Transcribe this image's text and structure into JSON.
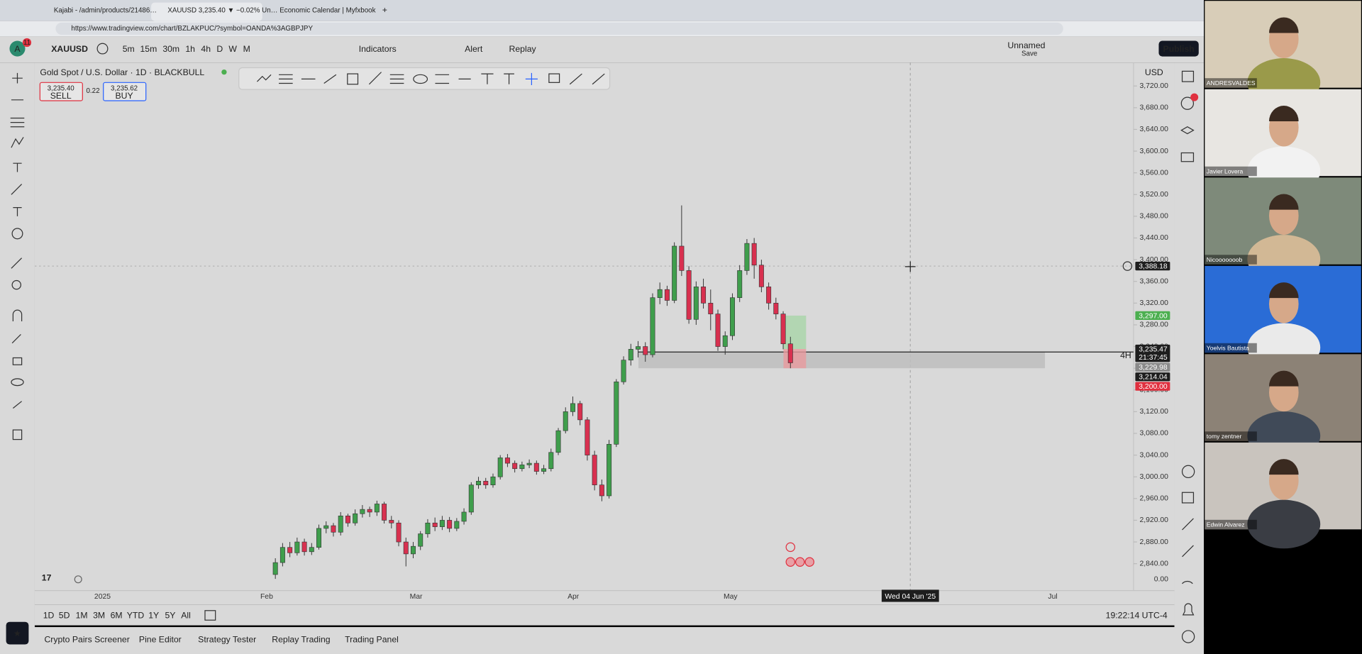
{
  "browser": {
    "tabs": [
      "Kajabi - /admin/products/21486…",
      "XAUUSD 3,235.40 ▼ −0.02% Un…",
      "Economic Calendar | Myfxbook"
    ],
    "url": "https://www.tradingview.com/chart/BZLAKPUC/?symbol=OANDA%3AGBPJPY"
  },
  "toolbar": {
    "avatar": "A",
    "badge": "11",
    "symbol": "XAUUSD",
    "intervals": [
      "5m",
      "15m",
      "30m",
      "1h",
      "4h",
      "D",
      "W",
      "M"
    ],
    "indicators": "Indicators",
    "alert": "Alert",
    "replay": "Replay",
    "layout_name": "Unnamed",
    "save": "Save",
    "publish": "Publish"
  },
  "order": {
    "sell_price": "3,235.40",
    "sell": "SELL",
    "spread": "0.22",
    "buy_price": "3,235.62",
    "buy": "BUY"
  },
  "chart_data": {
    "type": "candlestick",
    "title": "Gold Spot / U.S. Dollar · 1D · BLACKBULL",
    "currency": "USD",
    "interval_badge": "4H",
    "bottom_value": "0.00",
    "up_color": "#3f9e4c",
    "down_color": "#d8304f",
    "candles": [
      [
        2820,
        2850,
        2812,
        2842
      ],
      [
        2842,
        2878,
        2835,
        2870
      ],
      [
        2870,
        2880,
        2852,
        2860
      ],
      [
        2860,
        2888,
        2855,
        2880
      ],
      [
        2880,
        2886,
        2855,
        2862
      ],
      [
        2862,
        2878,
        2856,
        2870
      ],
      [
        2870,
        2912,
        2866,
        2905
      ],
      [
        2905,
        2918,
        2896,
        2910
      ],
      [
        2910,
        2915,
        2890,
        2898
      ],
      [
        2898,
        2935,
        2892,
        2928
      ],
      [
        2928,
        2932,
        2908,
        2915
      ],
      [
        2915,
        2940,
        2910,
        2932
      ],
      [
        2932,
        2948,
        2925,
        2940
      ],
      [
        2940,
        2945,
        2926,
        2935
      ],
      [
        2935,
        2956,
        2928,
        2950
      ],
      [
        2950,
        2954,
        2914,
        2920
      ],
      [
        2920,
        2928,
        2905,
        2915
      ],
      [
        2915,
        2920,
        2872,
        2880
      ],
      [
        2880,
        2888,
        2835,
        2858
      ],
      [
        2858,
        2880,
        2850,
        2872
      ],
      [
        2872,
        2900,
        2865,
        2895
      ],
      [
        2895,
        2922,
        2888,
        2915
      ],
      [
        2915,
        2925,
        2900,
        2908
      ],
      [
        2908,
        2928,
        2902,
        2920
      ],
      [
        2920,
        2926,
        2898,
        2905
      ],
      [
        2905,
        2924,
        2900,
        2918
      ],
      [
        2918,
        2942,
        2912,
        2935
      ],
      [
        2935,
        2990,
        2930,
        2985
      ],
      [
        2985,
        3000,
        2978,
        2992
      ],
      [
        2992,
        2998,
        2978,
        2985
      ],
      [
        2985,
        3006,
        2980,
        3000
      ],
      [
        3000,
        3040,
        2995,
        3035
      ],
      [
        3035,
        3042,
        3018,
        3025
      ],
      [
        3025,
        3030,
        3008,
        3015
      ],
      [
        3015,
        3028,
        3010,
        3022
      ],
      [
        3022,
        3032,
        3016,
        3025
      ],
      [
        3025,
        3030,
        3004,
        3010
      ],
      [
        3010,
        3022,
        3005,
        3015
      ],
      [
        3015,
        3052,
        3010,
        3045
      ],
      [
        3045,
        3090,
        3040,
        3085
      ],
      [
        3085,
        3128,
        3080,
        3120
      ],
      [
        3120,
        3148,
        3112,
        3135
      ],
      [
        3135,
        3140,
        3095,
        3105
      ],
      [
        3105,
        3110,
        3030,
        3040
      ],
      [
        3040,
        3048,
        2975,
        2985
      ],
      [
        2985,
        2995,
        2955,
        2965
      ],
      [
        2965,
        3068,
        2960,
        3060
      ],
      [
        3060,
        3180,
        3055,
        3175
      ],
      [
        3175,
        3222,
        3170,
        3215
      ],
      [
        3215,
        3245,
        3205,
        3235
      ],
      [
        3235,
        3250,
        3220,
        3240
      ],
      [
        3240,
        3248,
        3212,
        3225
      ],
      [
        3225,
        3338,
        3220,
        3330
      ],
      [
        3330,
        3358,
        3318,
        3345
      ],
      [
        3345,
        3352,
        3315,
        3325
      ],
      [
        3325,
        3432,
        3320,
        3425
      ],
      [
        3425,
        3500,
        3370,
        3380
      ],
      [
        3380,
        3388,
        3282,
        3290
      ],
      [
        3290,
        3360,
        3280,
        3350
      ],
      [
        3350,
        3365,
        3310,
        3320
      ],
      [
        3320,
        3345,
        3270,
        3300
      ],
      [
        3300,
        3308,
        3232,
        3240
      ],
      [
        3240,
        3268,
        3225,
        3260
      ],
      [
        3260,
        3338,
        3252,
        3330
      ],
      [
        3330,
        3390,
        3322,
        3380
      ],
      [
        3380,
        3438,
        3372,
        3430
      ],
      [
        3430,
        3440,
        3365,
        3390
      ],
      [
        3390,
        3400,
        3340,
        3350
      ],
      [
        3350,
        3358,
        3308,
        3320
      ],
      [
        3320,
        3330,
        3290,
        3300
      ],
      [
        3300,
        3305,
        3235,
        3245
      ],
      [
        3245,
        3258,
        3200,
        3210
      ]
    ],
    "ylim": [
      2840,
      3720
    ],
    "yticks": [
      {
        "value": 3720,
        "label": "3,720.00"
      },
      {
        "value": 3680,
        "label": "3,680.00"
      },
      {
        "value": 3640,
        "label": "3,640.00"
      },
      {
        "value": 3600,
        "label": "3,600.00"
      },
      {
        "value": 3560,
        "label": "3,560.00"
      },
      {
        "value": 3520,
        "label": "3,520.00"
      },
      {
        "value": 3480,
        "label": "3,480.00"
      },
      {
        "value": 3440,
        "label": "3,440.00"
      },
      {
        "value": 3400,
        "label": "3,400.00"
      },
      {
        "value": 3360,
        "label": "3,360.00"
      },
      {
        "value": 3320,
        "label": "3,320.00"
      },
      {
        "value": 3280,
        "label": "3,280.00"
      },
      {
        "value": 3240,
        "label": "3,240.00"
      },
      {
        "value": 3200,
        "label": "3,200.00"
      },
      {
        "value": 3160,
        "label": "3,160.00"
      },
      {
        "value": 3120,
        "label": "3,120.00"
      },
      {
        "value": 3080,
        "label": "3,080.00"
      },
      {
        "value": 3040,
        "label": "3,040.00"
      },
      {
        "value": 3000,
        "label": "3,000.00"
      },
      {
        "value": 2960,
        "label": "2,960.00"
      },
      {
        "value": 2920,
        "label": "2,920.00"
      },
      {
        "value": 2880,
        "label": "2,880.00"
      },
      {
        "value": 2840,
        "label": "2,840.00"
      }
    ],
    "x_labels": [
      "2025",
      "Feb",
      "Mar",
      "Apr",
      "May",
      "Wed 04 Jun '25",
      "Jul"
    ],
    "price_labels": [
      {
        "value": 3388.18,
        "label": "3,388.18",
        "color": "#1e1e1e"
      },
      {
        "value": 3297,
        "label": "3,297.00",
        "color": "#4caf50"
      },
      {
        "value": 3235.47,
        "label": "3,235.47",
        "color": "#1e1e1e",
        "countdown": "21:37:45"
      },
      {
        "value": 3229.98,
        "label": "3,229.98",
        "color": "#8a8a8a"
      },
      {
        "value": 3214.04,
        "label": "3,214.04",
        "color": "#1e1e1e"
      },
      {
        "value": 3200,
        "label": "3,200.00",
        "color": "#e0303f"
      }
    ]
  },
  "range_buttons": [
    "1D",
    "5D",
    "1M",
    "3M",
    "6M",
    "YTD",
    "1Y",
    "5Y",
    "All"
  ],
  "clock": "19:22:14 UTC-4",
  "panels": [
    "Crypto Pairs Screener",
    "Pine Editor",
    "Strategy Tester",
    "Replay Trading",
    "Trading Panel"
  ],
  "participants": [
    "ANDRESVALDES",
    "Javier Lovera",
    "Nicooooooob",
    "Yoelvis Bautista",
    "tomy zentner",
    "Edwin Alvarez"
  ]
}
